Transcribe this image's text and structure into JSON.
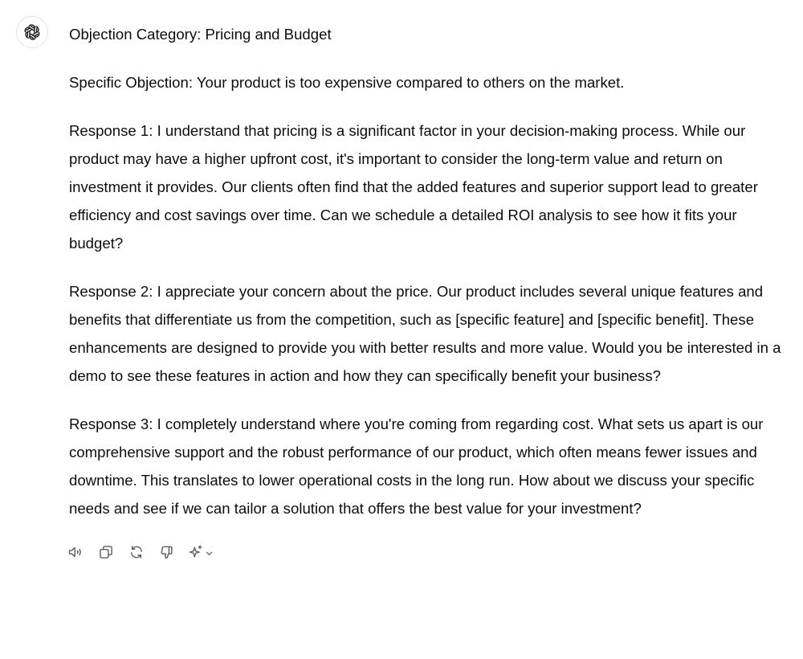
{
  "message": {
    "author_icon": "openai-logo-icon",
    "paragraphs": [
      "Objection Category: Pricing and Budget",
      "Specific Objection: Your product is too expensive compared to others on the market.",
      "Response 1: I understand that pricing is a significant factor in your decision-making process. While our product may have a higher upfront cost, it's important to consider the long-term value and return on investment it provides. Our clients often find that the added features and superior support lead to greater efficiency and cost savings over time. Can we schedule a detailed ROI analysis to see how it fits your budget?",
      "Response 2: I appreciate your concern about the price. Our product includes several unique features and benefits that differentiate us from the competition, such as [specific feature] and [specific benefit]. These enhancements are designed to provide you with better results and more value. Would you be interested in a demo to see these features in action and how they can specifically benefit your business?",
      "Response 3: I completely understand where you're coming from regarding cost. What sets us apart is our comprehensive support and the robust performance of our product, which often means fewer issues and downtime. This translates to lower operational costs in the long run. How about we discuss your specific needs and see if we can tailor a solution that offers the best value for your investment?"
    ]
  },
  "actions": {
    "icons": [
      "speaker-icon",
      "copy-icon",
      "regenerate-icon",
      "thumbs-down-icon",
      "sparkle-icon",
      "chevron-down-icon"
    ]
  },
  "colors": {
    "text": "#0d0d0d",
    "icon": "#5d5d5d",
    "avatar_border": "#e5e5e5"
  }
}
